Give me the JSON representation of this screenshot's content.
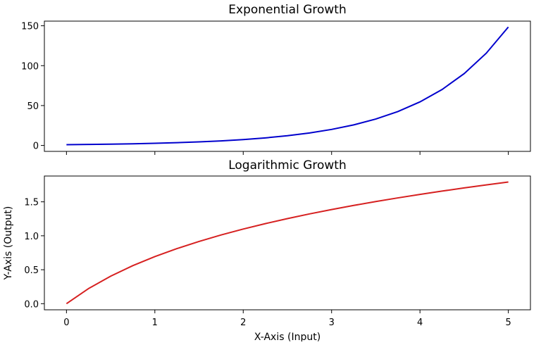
{
  "chart_data": [
    {
      "type": "line",
      "title": "Exponential Growth",
      "xlabel": "",
      "ylabel": "",
      "xlim": [
        -0.25,
        5.25
      ],
      "ylim": [
        -7.42,
        155.83
      ],
      "xticks": [
        0,
        1,
        2,
        3,
        4,
        5
      ],
      "x_ticklabels_visible": false,
      "yticks": [
        0,
        50,
        100,
        150
      ],
      "ytick_labels": [
        "0",
        "50",
        "100",
        "150"
      ],
      "grid": false,
      "series": [
        {
          "color": "#0000cd",
          "x": [
            0,
            0.25,
            0.5,
            0.75,
            1,
            1.25,
            1.5,
            1.75,
            2,
            2.25,
            2.5,
            2.75,
            3,
            3.25,
            3.5,
            3.75,
            4,
            4.25,
            4.5,
            4.75,
            5
          ],
          "y": [
            1.0,
            1.28,
            1.65,
            2.12,
            2.72,
            3.49,
            4.48,
            5.75,
            7.39,
            9.49,
            12.18,
            15.64,
            20.09,
            25.79,
            33.12,
            42.52,
            54.6,
            70.11,
            90.02,
            115.58,
            148.41
          ]
        }
      ]
    },
    {
      "type": "line",
      "title": "Logarithmic Growth",
      "xlabel": "X-Axis (Input)",
      "ylabel": "Y-Axis (Output)",
      "xlim": [
        -0.25,
        5.25
      ],
      "ylim": [
        -0.09,
        1.88
      ],
      "xticks": [
        0,
        1,
        2,
        3,
        4,
        5
      ],
      "xtick_labels": [
        "0",
        "1",
        "2",
        "3",
        "4",
        "5"
      ],
      "yticks": [
        0.0,
        0.5,
        1.0,
        1.5
      ],
      "ytick_labels": [
        "0.0",
        "0.5",
        "1.0",
        "1.5"
      ],
      "grid": false,
      "series": [
        {
          "color": "#d62020",
          "x": [
            0,
            0.25,
            0.5,
            0.75,
            1,
            1.25,
            1.5,
            1.75,
            2,
            2.25,
            2.5,
            2.75,
            3,
            3.25,
            3.5,
            3.75,
            4,
            4.25,
            4.5,
            4.75,
            5
          ],
          "y": [
            0.0,
            0.223,
            0.405,
            0.56,
            0.693,
            0.811,
            0.916,
            1.012,
            1.099,
            1.179,
            1.253,
            1.322,
            1.386,
            1.447,
            1.504,
            1.558,
            1.609,
            1.658,
            1.705,
            1.749,
            1.792
          ]
        }
      ]
    }
  ]
}
